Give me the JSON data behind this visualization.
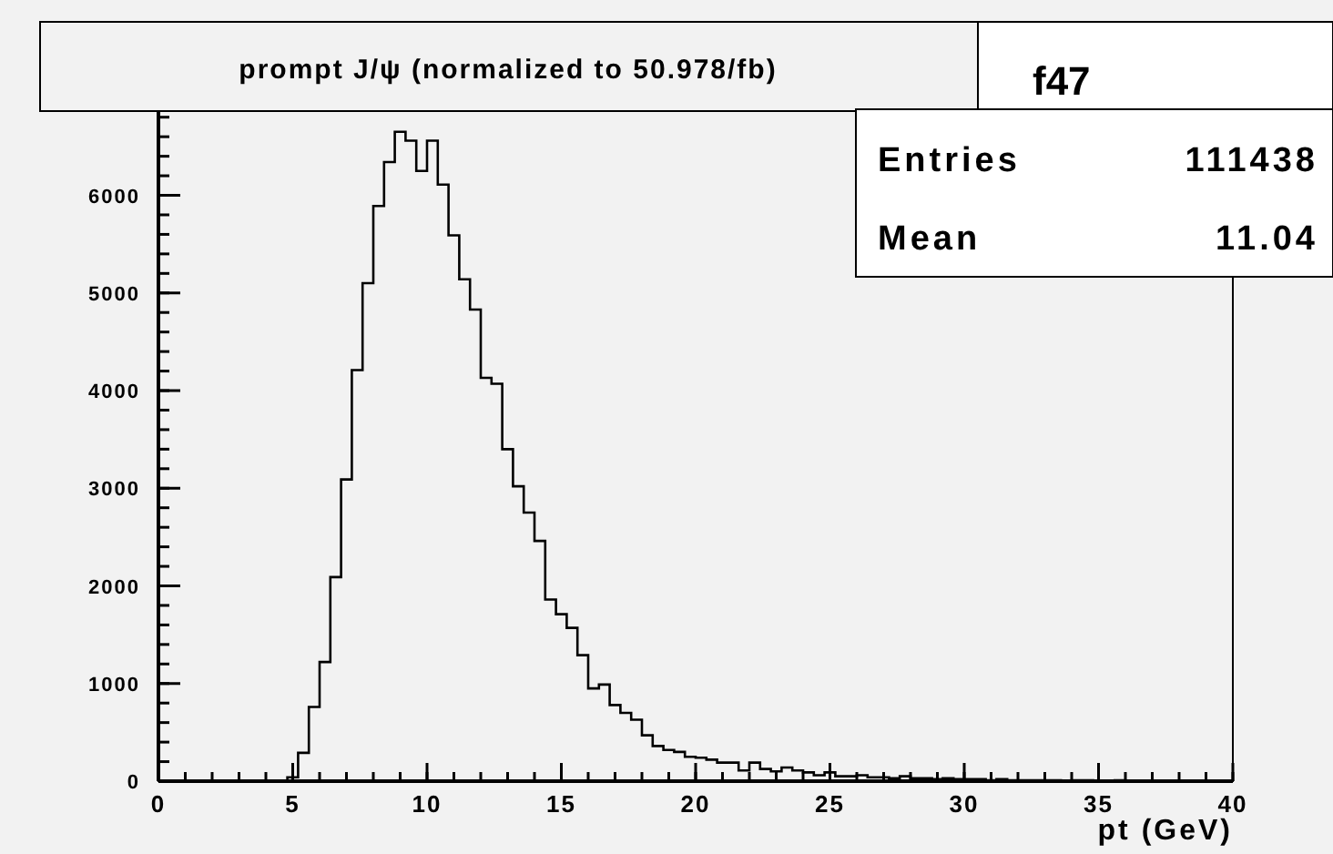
{
  "chart_data": {
    "type": "histogram",
    "title": "prompt J/ψ (normalized to 50.978/fb)",
    "xlabel": "pt (GeV)",
    "annotations": [
      "f47",
      "Entries",
      "111438",
      "Mean",
      "11.04"
    ],
    "bins": [
      0,
      0.4,
      0.8,
      1.2,
      1.6,
      2,
      2.4,
      2.8,
      3.2,
      3.6,
      4,
      4.4,
      4.8,
      5.2,
      5.6,
      6,
      6.4,
      6.8,
      7.2,
      7.6,
      8,
      8.4,
      8.8,
      9.2,
      9.6,
      10,
      10.4,
      10.8,
      11.2,
      11.6,
      12,
      12.4,
      12.8,
      13.2,
      13.6,
      14,
      14.4,
      14.8,
      15.2,
      15.6,
      16,
      16.4,
      16.8,
      17.2,
      17.6,
      18,
      18.4,
      18.8,
      19.2,
      19.6,
      20,
      20.4,
      20.8,
      21.2,
      21.6,
      22,
      22.4,
      22.8,
      23.2,
      23.6,
      24,
      24.4,
      24.8,
      25.2,
      25.6,
      26,
      26.4,
      26.8,
      27.2,
      27.6,
      28,
      28.4,
      28.8,
      29.2,
      29.6,
      30,
      30.4,
      30.8,
      31.2,
      31.6,
      32,
      32.4,
      32.8,
      33.2,
      33.6,
      34,
      34.4,
      34.8,
      35.2,
      35.6,
      36,
      36.4,
      36.8,
      37.2,
      37.6,
      38,
      38.4,
      38.8,
      39.2,
      39.6,
      40
    ],
    "values": [
      0,
      0,
      0,
      0,
      0,
      0,
      0,
      0,
      0,
      0,
      0,
      0,
      40,
      290,
      760,
      1220,
      2090,
      3090,
      4210,
      5100,
      5890,
      6340,
      6650,
      6560,
      6250,
      6560,
      6110,
      5590,
      5140,
      4830,
      4130,
      4070,
      3400,
      3020,
      2750,
      2460,
      1860,
      1710,
      1570,
      1290,
      950,
      990,
      780,
      700,
      630,
      470,
      360,
      320,
      300,
      250,
      240,
      220,
      190,
      190,
      110,
      190,
      125,
      100,
      140,
      110,
      90,
      60,
      90,
      50,
      50,
      60,
      40,
      40,
      30,
      50,
      30,
      30,
      20,
      30,
      20,
      20,
      20,
      10,
      20,
      10,
      10,
      10,
      10,
      10,
      0,
      10,
      10,
      0,
      0,
      10,
      0,
      0,
      0,
      0,
      0,
      0,
      0,
      0,
      0,
      0
    ],
    "color": "#000000",
    "xlim": [
      0,
      40
    ],
    "xticks": [
      0,
      5,
      10,
      15,
      20,
      25,
      30,
      35,
      40
    ],
    "ylim": [
      0,
      6900
    ],
    "yticks": [
      0,
      1000,
      2000,
      3000,
      4000,
      5000,
      6000
    ]
  }
}
